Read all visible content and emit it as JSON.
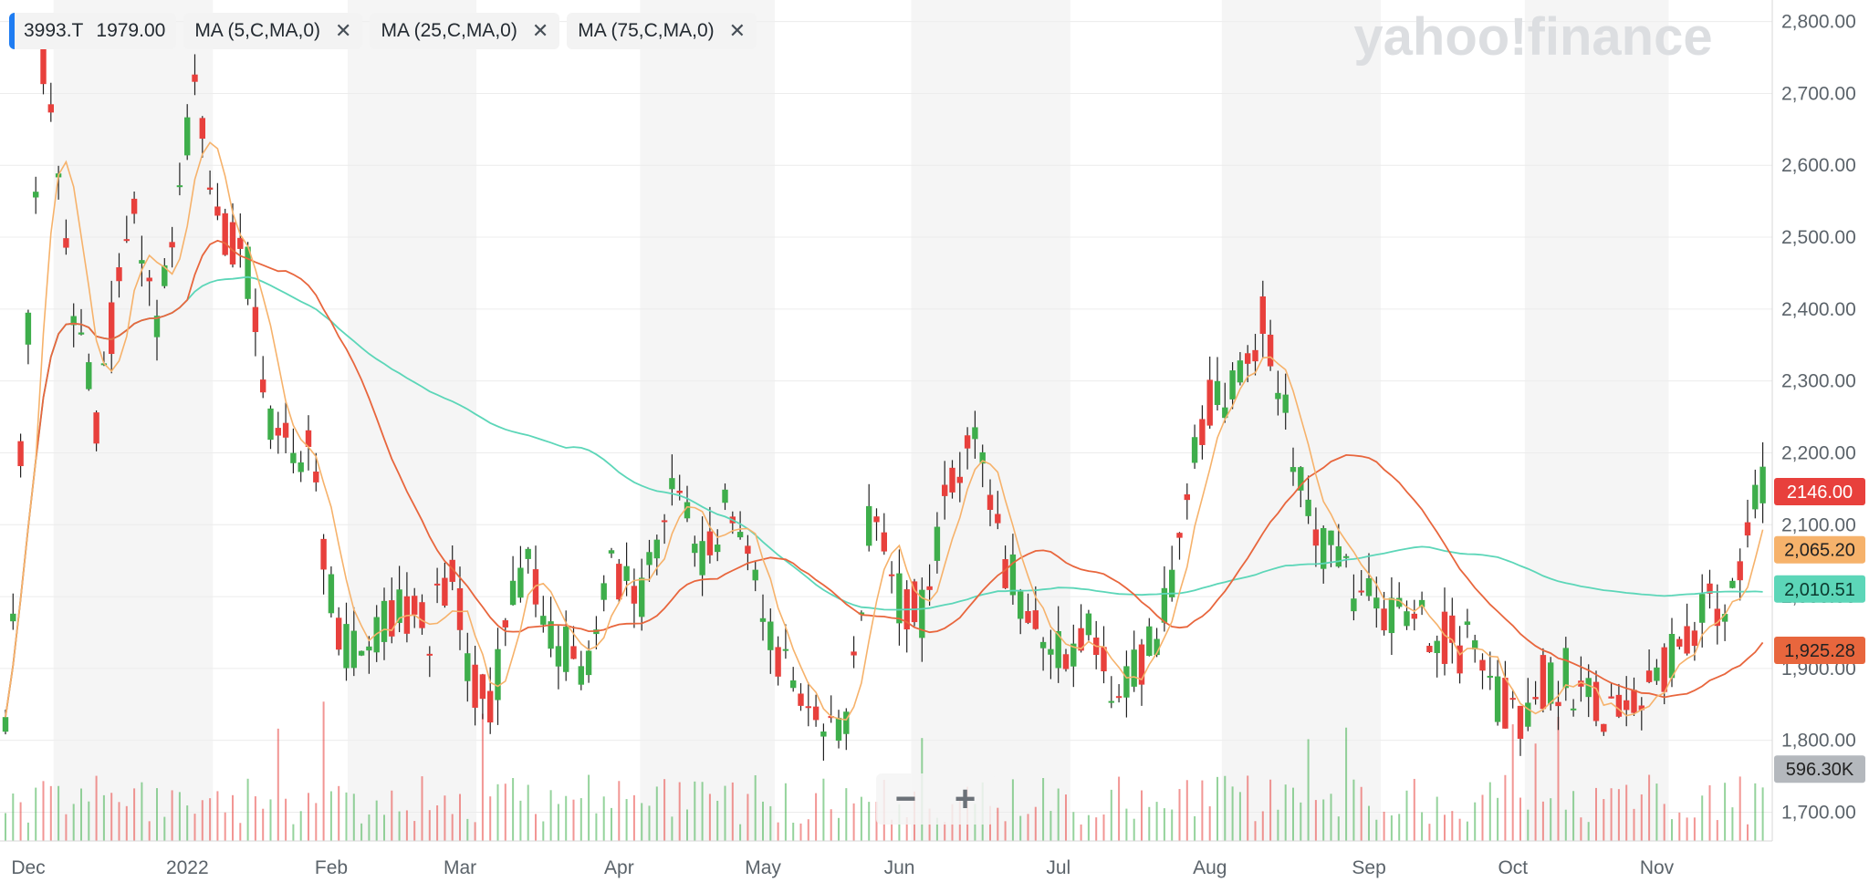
{
  "legend": {
    "symbol": "3993.T",
    "price": "1979.00",
    "indicators": [
      {
        "label": "MA (5,C,MA,0)",
        "color": "#f6b26b"
      },
      {
        "label": "MA (25,C,MA,0)",
        "color": "#e8663d"
      },
      {
        "label": "MA (75,C,MA,0)",
        "color": "#5cd6b8"
      }
    ],
    "close_glyph": "✕"
  },
  "watermark": "yahoo!finance",
  "zoom": {
    "minus": "−",
    "plus": "+"
  },
  "colors": {
    "up": "#3eae4b",
    "down": "#e8403c",
    "band": "#f5f5f5",
    "grid": "#ececec"
  },
  "chart_data": {
    "type": "candlestick",
    "ylim": [
      1660,
      2830
    ],
    "y_ticks": [
      {
        "v": 1700,
        "label": "1,700.00"
      },
      {
        "v": 1800,
        "label": "1,800.00"
      },
      {
        "v": 1900,
        "label": "1,900.00"
      },
      {
        "v": 2000,
        "label": "2,000.00"
      },
      {
        "v": 2100,
        "label": "2,100.00"
      },
      {
        "v": 2200,
        "label": "2,200.00"
      },
      {
        "v": 2300,
        "label": "2,300.00"
      },
      {
        "v": 2400,
        "label": "2,400.00"
      },
      {
        "v": 2500,
        "label": "2,500.00"
      },
      {
        "v": 2600,
        "label": "2,600.00"
      },
      {
        "v": 2700,
        "label": "2,700.00"
      },
      {
        "v": 2800,
        "label": "2,800.00"
      }
    ],
    "x_ticks": [
      {
        "i": 10,
        "label": "Dec"
      },
      {
        "i": 31,
        "label": "2022"
      },
      {
        "i": 50,
        "label": "Feb"
      },
      {
        "i": 67,
        "label": "Mar"
      },
      {
        "i": 88,
        "label": "Apr"
      },
      {
        "i": 107,
        "label": "May"
      },
      {
        "i": 125,
        "label": "Jun"
      },
      {
        "i": 146,
        "label": "Jul"
      },
      {
        "i": 166,
        "label": "Aug"
      },
      {
        "i": 187,
        "label": "Sep"
      },
      {
        "i": 206,
        "label": "Oct"
      },
      {
        "i": 225,
        "label": "Nov"
      }
    ],
    "anchors": [
      [
        0,
        1800
      ],
      [
        5,
        2750
      ],
      [
        9,
        2400
      ],
      [
        12,
        2250
      ],
      [
        17,
        2550
      ],
      [
        20,
        2400
      ],
      [
        25,
        2700
      ],
      [
        29,
        2500
      ],
      [
        32,
        2450
      ],
      [
        35,
        2250
      ],
      [
        40,
        2200
      ],
      [
        44,
        1950
      ],
      [
        47,
        1920
      ],
      [
        52,
        2000
      ],
      [
        56,
        1950
      ],
      [
        59,
        2050
      ],
      [
        61,
        1900
      ],
      [
        64,
        1840
      ],
      [
        67,
        2000
      ],
      [
        69,
        2050
      ],
      [
        72,
        1950
      ],
      [
        76,
        1890
      ],
      [
        80,
        2030
      ],
      [
        84,
        2000
      ],
      [
        88,
        2150
      ],
      [
        92,
        2050
      ],
      [
        95,
        2120
      ],
      [
        100,
        1980
      ],
      [
        103,
        1900
      ],
      [
        107,
        1860
      ],
      [
        111,
        1800
      ],
      [
        114,
        2100
      ],
      [
        118,
        2000
      ],
      [
        121,
        1980
      ],
      [
        124,
        2120
      ],
      [
        128,
        2230
      ],
      [
        132,
        2050
      ],
      [
        136,
        1960
      ],
      [
        139,
        1920
      ],
      [
        143,
        1950
      ],
      [
        146,
        1860
      ],
      [
        150,
        1900
      ],
      [
        154,
        2000
      ],
      [
        158,
        2250
      ],
      [
        162,
        2300
      ],
      [
        166,
        2380
      ],
      [
        170,
        2200
      ],
      [
        174,
        2070
      ],
      [
        178,
        2010
      ],
      [
        182,
        1980
      ],
      [
        186,
        1960
      ],
      [
        189,
        1950
      ],
      [
        194,
        1920
      ],
      [
        196,
        1860
      ],
      [
        200,
        1840
      ],
      [
        203,
        1880
      ],
      [
        206,
        1890
      ],
      [
        210,
        1850
      ],
      [
        214,
        1850
      ],
      [
        218,
        1870
      ],
      [
        222,
        1960
      ],
      [
        227,
        2000
      ],
      [
        232,
        2146
      ]
    ],
    "series_last_values": [
      {
        "name": "MA (5,C,MA,0)",
        "value": "2,065.20",
        "color": "#f6b26b"
      },
      {
        "name": "MA (25,C,MA,0)",
        "value": "1,925.28",
        "color": "#e8663d"
      },
      {
        "name": "MA (75,C,MA,0)",
        "value": "2,010.51",
        "color": "#5cd6b8"
      }
    ],
    "last_price": {
      "value": "2146.00",
      "color": "#e8403c"
    },
    "volume_label": {
      "value": "596.30K",
      "color": "#b4b8bd"
    }
  }
}
